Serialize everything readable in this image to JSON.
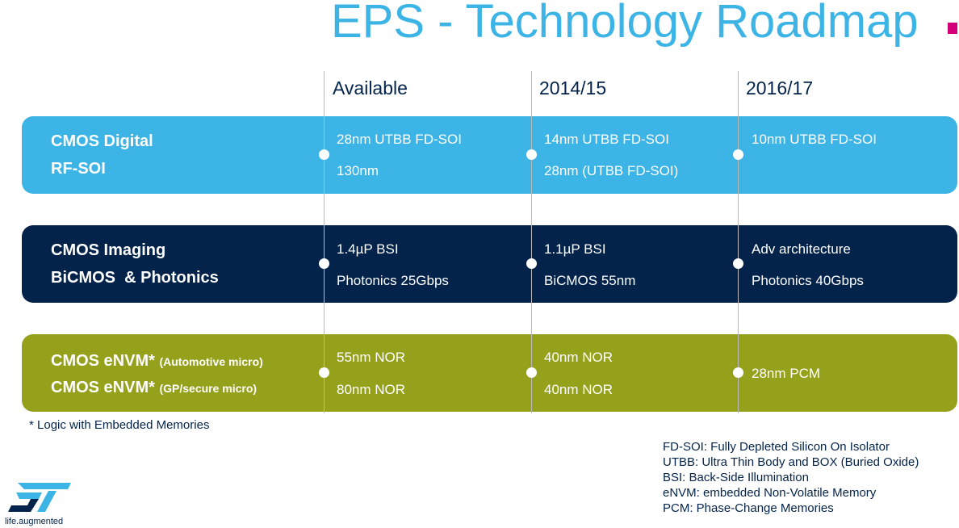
{
  "title": "EPS - Technology Roadmap",
  "columns": [
    "Available",
    "2014/15",
    "2016/17"
  ],
  "rows": [
    {
      "labels": [
        {
          "main": "CMOS Digital",
          "note": ""
        },
        {
          "main": "RF-SOI",
          "note": ""
        }
      ],
      "cells": [
        [
          "28nm UTBB FD-SOI",
          "130nm"
        ],
        [
          "14nm UTBB FD-SOI",
          "28nm (UTBB FD-SOI)"
        ],
        [
          "10nm UTBB FD-SOI"
        ]
      ],
      "color": "#3cb4e5"
    },
    {
      "labels": [
        {
          "main": "CMOS Imaging",
          "note": ""
        },
        {
          "main": "BiCMOS  & Photonics",
          "note": ""
        }
      ],
      "cells": [
        [
          "1.4µP BSI",
          "Photonics 25Gbps"
        ],
        [
          "1.1µP BSI",
          "BiCMOS 55nm"
        ],
        [
          "Adv architecture",
          "Photonics 40Gbps"
        ]
      ],
      "color": "#03234b"
    },
    {
      "labels": [
        {
          "main": "CMOS eNVM*",
          "note": "(Automotive micro)"
        },
        {
          "main": "CMOS eNVM*",
          "note": "(GP/secure micro)"
        }
      ],
      "cells": [
        [
          "55nm NOR",
          "80nm NOR"
        ],
        [
          "40nm NOR",
          "40nm NOR"
        ],
        [
          "28nm PCM"
        ]
      ],
      "color": "#95a11b"
    }
  ],
  "footnote": "* Logic with Embedded Memories",
  "glossary": [
    "FD-SOI: Fully Depleted Silicon On Isolator",
    "UTBB: Ultra Thin Body and BOX (Buried Oxide)",
    "BSI: Back-Side Illumination",
    "eNVM: embedded Non-Volatile Memory",
    "PCM: Phase-Change Memories"
  ],
  "logo_text": "ST",
  "tagline": "life.augmented",
  "accent_color": "#d4007a"
}
